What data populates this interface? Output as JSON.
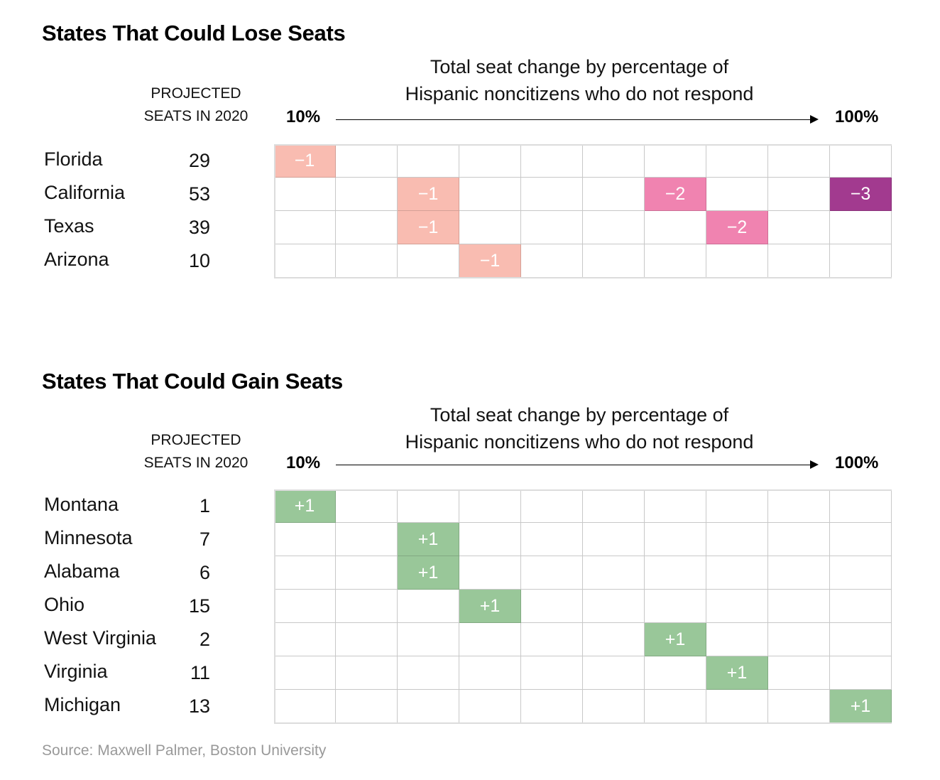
{
  "source": "Source: Maxwell Palmer, Boston University",
  "chart_data": [
    {
      "type": "heatmap",
      "title": "States That Could Lose Seats",
      "xlabel": "Total seat change by percentage of Hispanic noncitizens who do not respond",
      "xlabel_lines": [
        "Total seat change by percentage of",
        "Hispanic noncitizens who do not respond"
      ],
      "x_start_label": "10%",
      "x_end_label": "100%",
      "x": [
        "10%",
        "20%",
        "30%",
        "40%",
        "50%",
        "60%",
        "70%",
        "80%",
        "90%",
        "100%"
      ],
      "seats_header": [
        "PROJECTED",
        "SEATS IN 2020"
      ],
      "rows": [
        {
          "state": "Florida",
          "seats": "29",
          "changes": [
            {
              "col": 0,
              "value": -1,
              "label": "−1"
            }
          ]
        },
        {
          "state": "California",
          "seats": "53",
          "changes": [
            {
              "col": 2,
              "value": -1,
              "label": "−1"
            },
            {
              "col": 6,
              "value": -2,
              "label": "−2"
            },
            {
              "col": 9,
              "value": -3,
              "label": "−3"
            }
          ]
        },
        {
          "state": "Texas",
          "seats": "39",
          "changes": [
            {
              "col": 2,
              "value": -1,
              "label": "−1"
            },
            {
              "col": 7,
              "value": -2,
              "label": "−2"
            }
          ]
        },
        {
          "state": "Arizona",
          "seats": "10",
          "changes": [
            {
              "col": 3,
              "value": -1,
              "label": "−1"
            }
          ]
        }
      ],
      "colors": {
        "-1": "#f9bcb1",
        "-2": "#f083b0",
        "-3": "#a23a8f"
      }
    },
    {
      "type": "heatmap",
      "title": "States That Could Gain Seats",
      "xlabel": "Total seat change by percentage of Hispanic noncitizens who do not respond",
      "xlabel_lines": [
        "Total seat change by percentage of",
        "Hispanic noncitizens who do not respond"
      ],
      "x_start_label": "10%",
      "x_end_label": "100%",
      "x": [
        "10%",
        "20%",
        "30%",
        "40%",
        "50%",
        "60%",
        "70%",
        "80%",
        "90%",
        "100%"
      ],
      "seats_header": [
        "PROJECTED",
        "SEATS IN 2020"
      ],
      "rows": [
        {
          "state": "Montana",
          "seats": "1",
          "changes": [
            {
              "col": 0,
              "value": 1,
              "label": "+1"
            }
          ]
        },
        {
          "state": "Minnesota",
          "seats": "7",
          "changes": [
            {
              "col": 2,
              "value": 1,
              "label": "+1"
            }
          ]
        },
        {
          "state": "Alabama",
          "seats": "6",
          "changes": [
            {
              "col": 2,
              "value": 1,
              "label": "+1"
            }
          ]
        },
        {
          "state": "Ohio",
          "seats": "15",
          "changes": [
            {
              "col": 3,
              "value": 1,
              "label": "+1"
            }
          ]
        },
        {
          "state": "West Virginia",
          "seats": "2",
          "changes": [
            {
              "col": 6,
              "value": 1,
              "label": "+1"
            }
          ]
        },
        {
          "state": "Virginia",
          "seats": "11",
          "changes": [
            {
              "col": 7,
              "value": 1,
              "label": "+1"
            }
          ]
        },
        {
          "state": "Michigan",
          "seats": "13",
          "changes": [
            {
              "col": 9,
              "value": 1,
              "label": "+1"
            }
          ]
        }
      ],
      "colors": {
        "1": "#99c799"
      }
    }
  ]
}
